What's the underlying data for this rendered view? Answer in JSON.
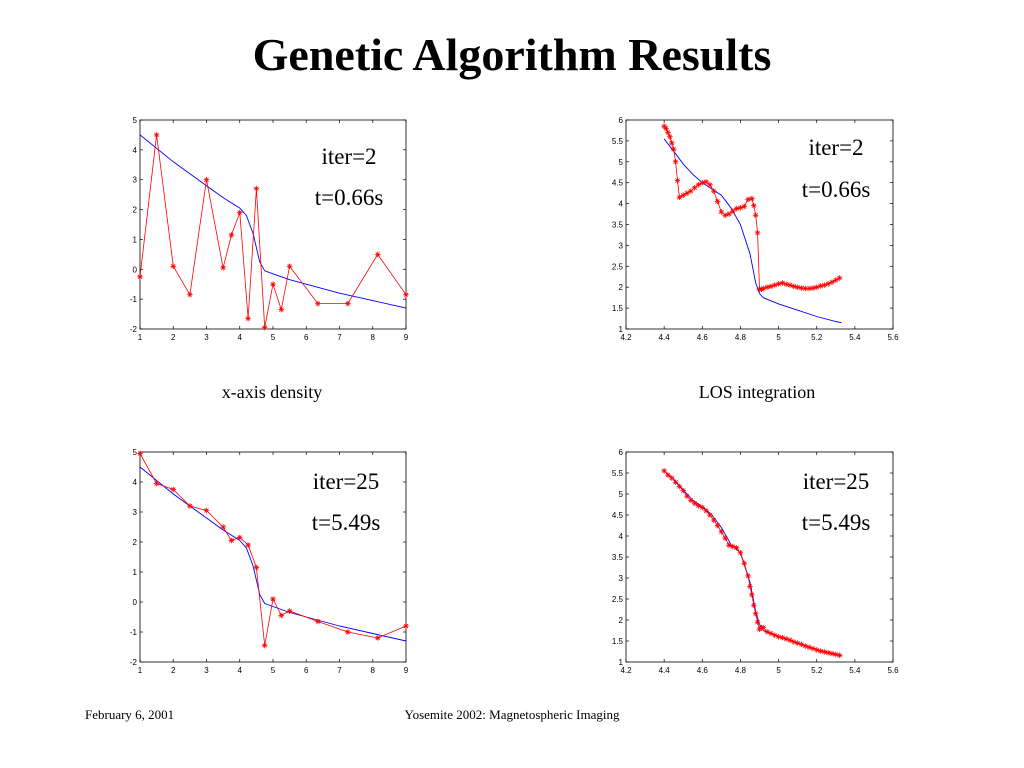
{
  "slide": {
    "title": "Genetic Algorithm Results",
    "footer_left": "February 6, 2001",
    "footer_center": "Yosemite 2002: Magnetospheric Imaging",
    "captions": [
      "x-axis  density",
      "LOS integration"
    ]
  },
  "colors": {
    "true_curve": "#0000ff",
    "estimate": "#ff0000"
  },
  "chart_data": [
    {
      "type": "line",
      "annotations": [
        "iter=2",
        "t=0.66s"
      ],
      "xlim": [
        1,
        9
      ],
      "ylim": [
        -2,
        5
      ],
      "xticks": [
        1,
        2,
        3,
        4,
        5,
        6,
        7,
        8,
        9
      ],
      "yticks": [
        -2,
        -1,
        0,
        1,
        2,
        3,
        4,
        5
      ],
      "series": [
        {
          "style": "line",
          "color": "#0000ff",
          "x": [
            1,
            2,
            3,
            3.5,
            4,
            4.2,
            4.4,
            4.6,
            4.75,
            5,
            5.5,
            6,
            7,
            8,
            9
          ],
          "y": [
            4.5,
            3.6,
            2.8,
            2.4,
            2.05,
            1.8,
            1.2,
            0.25,
            -0.05,
            -0.15,
            -0.35,
            -0.5,
            -0.8,
            -1.05,
            -1.3
          ]
        },
        {
          "style": "line-markers",
          "color": "#ff0000",
          "x": [
            1,
            1.5,
            2,
            2.5,
            3,
            3.5,
            3.75,
            4,
            4.25,
            4.5,
            4.75,
            5,
            5.25,
            5.5,
            6.35,
            7.25,
            8.15,
            9
          ],
          "y": [
            -0.25,
            4.5,
            0.1,
            -0.85,
            3.0,
            0.05,
            1.15,
            1.9,
            -1.65,
            2.7,
            -1.95,
            -0.5,
            -1.35,
            0.1,
            -1.15,
            -1.15,
            0.5,
            -0.85
          ]
        }
      ]
    },
    {
      "type": "line",
      "annotations": [
        "iter=2",
        "t=0.66s"
      ],
      "xlim": [
        4.2,
        5.6
      ],
      "ylim": [
        1,
        6
      ],
      "xticks": [
        4.2,
        4.4,
        4.6,
        4.8,
        5,
        5.2,
        5.4,
        5.6
      ],
      "yticks": [
        1,
        1.5,
        2,
        2.5,
        3,
        3.5,
        4,
        4.5,
        5,
        5.5,
        6
      ],
      "series": [
        {
          "style": "line",
          "color": "#0000ff",
          "x": [
            4.4,
            4.45,
            4.5,
            4.55,
            4.6,
            4.65,
            4.7,
            4.75,
            4.8,
            4.85,
            4.88,
            4.9,
            4.92,
            5.0,
            5.1,
            5.2,
            5.3,
            5.33
          ],
          "y": [
            5.55,
            5.25,
            4.95,
            4.7,
            4.5,
            4.35,
            4.2,
            3.9,
            3.5,
            2.8,
            2.1,
            1.85,
            1.75,
            1.6,
            1.45,
            1.3,
            1.18,
            1.15
          ]
        },
        {
          "style": "line-markers",
          "color": "#ff0000",
          "x": [
            4.4,
            4.41,
            4.42,
            4.43,
            4.44,
            4.45,
            4.46,
            4.47,
            4.48,
            4.5,
            4.52,
            4.54,
            4.56,
            4.58,
            4.6,
            4.62,
            4.64,
            4.66,
            4.68,
            4.7,
            4.72,
            4.74,
            4.76,
            4.78,
            4.8,
            4.82,
            4.84,
            4.86,
            4.87,
            4.88,
            4.89,
            4.9,
            4.91,
            4.92,
            4.94,
            4.96,
            4.98,
            5.0,
            5.02,
            5.04,
            5.06,
            5.08,
            5.1,
            5.12,
            5.14,
            5.16,
            5.18,
            5.2,
            5.22,
            5.24,
            5.26,
            5.28,
            5.3,
            5.32
          ],
          "y": [
            5.85,
            5.8,
            5.7,
            5.6,
            5.45,
            5.3,
            5.0,
            4.55,
            4.15,
            4.2,
            4.25,
            4.3,
            4.38,
            4.45,
            4.5,
            4.52,
            4.45,
            4.3,
            4.05,
            3.8,
            3.72,
            3.75,
            3.82,
            3.88,
            3.9,
            3.93,
            4.1,
            4.12,
            3.95,
            3.72,
            3.3,
            1.95,
            1.95,
            1.97,
            2.0,
            2.02,
            2.05,
            2.08,
            2.1,
            2.07,
            2.05,
            2.02,
            2.0,
            1.98,
            1.97,
            1.97,
            1.98,
            2.0,
            2.03,
            2.05,
            2.08,
            2.12,
            2.17,
            2.22
          ]
        }
      ]
    },
    {
      "type": "line",
      "annotations": [
        "iter=25",
        "t=5.49s"
      ],
      "xlim": [
        1,
        9
      ],
      "ylim": [
        -2,
        5
      ],
      "xticks": [
        1,
        2,
        3,
        4,
        5,
        6,
        7,
        8,
        9
      ],
      "yticks": [
        -2,
        -1,
        0,
        1,
        2,
        3,
        4,
        5
      ],
      "series": [
        {
          "style": "line",
          "color": "#0000ff",
          "x": [
            1,
            2,
            3,
            3.5,
            4,
            4.2,
            4.4,
            4.6,
            4.75,
            5,
            5.5,
            6,
            7,
            8,
            9
          ],
          "y": [
            4.5,
            3.6,
            2.8,
            2.4,
            2.05,
            1.8,
            1.2,
            0.25,
            -0.05,
            -0.15,
            -0.35,
            -0.5,
            -0.8,
            -1.05,
            -1.3
          ]
        },
        {
          "style": "line-markers",
          "color": "#ff0000",
          "x": [
            1,
            1.5,
            2,
            2.5,
            3,
            3.5,
            3.75,
            4,
            4.25,
            4.5,
            4.75,
            5,
            5.25,
            5.5,
            6.35,
            7.25,
            8.15,
            9
          ],
          "y": [
            4.95,
            3.95,
            3.75,
            3.2,
            3.05,
            2.5,
            2.05,
            2.15,
            1.9,
            1.15,
            -1.45,
            0.1,
            -0.45,
            -0.3,
            -0.65,
            -1.0,
            -1.2,
            -0.8
          ]
        }
      ]
    },
    {
      "type": "line",
      "annotations": [
        "iter=25",
        "t=5.49s"
      ],
      "xlim": [
        4.2,
        5.6
      ],
      "ylim": [
        1,
        6
      ],
      "xticks": [
        4.2,
        4.4,
        4.6,
        4.8,
        5,
        5.2,
        5.4,
        5.6
      ],
      "yticks": [
        1,
        1.5,
        2,
        2.5,
        3,
        3.5,
        4,
        4.5,
        5,
        5.5,
        6
      ],
      "series": [
        {
          "style": "line",
          "color": "#0000ff",
          "x": [
            4.4,
            4.45,
            4.5,
            4.55,
            4.6,
            4.65,
            4.7,
            4.75,
            4.8,
            4.85,
            4.88,
            4.9,
            4.92,
            5.0,
            5.1,
            5.2,
            5.3,
            5.33
          ],
          "y": [
            5.55,
            5.35,
            5.1,
            4.85,
            4.7,
            4.5,
            4.2,
            3.8,
            3.6,
            2.9,
            2.2,
            1.9,
            1.75,
            1.6,
            1.45,
            1.3,
            1.18,
            1.15
          ]
        },
        {
          "style": "line-markers",
          "color": "#ff0000",
          "x": [
            4.4,
            4.42,
            4.44,
            4.46,
            4.48,
            4.5,
            4.52,
            4.54,
            4.56,
            4.58,
            4.6,
            4.62,
            4.64,
            4.66,
            4.68,
            4.7,
            4.72,
            4.74,
            4.76,
            4.78,
            4.8,
            4.82,
            4.84,
            4.85,
            4.86,
            4.87,
            4.88,
            4.89,
            4.9,
            4.91,
            4.92,
            4.94,
            4.96,
            4.98,
            5.0,
            5.02,
            5.04,
            5.06,
            5.08,
            5.1,
            5.12,
            5.14,
            5.16,
            5.18,
            5.2,
            5.22,
            5.24,
            5.26,
            5.28,
            5.3,
            5.32
          ],
          "y": [
            5.55,
            5.45,
            5.38,
            5.28,
            5.18,
            5.08,
            4.95,
            4.85,
            4.78,
            4.72,
            4.68,
            4.6,
            4.5,
            4.38,
            4.25,
            4.1,
            3.95,
            3.78,
            3.75,
            3.72,
            3.6,
            3.35,
            3.05,
            2.8,
            2.6,
            2.35,
            2.15,
            1.95,
            1.78,
            1.82,
            1.82,
            1.72,
            1.68,
            1.64,
            1.6,
            1.58,
            1.55,
            1.52,
            1.48,
            1.45,
            1.42,
            1.38,
            1.35,
            1.32,
            1.29,
            1.26,
            1.24,
            1.22,
            1.2,
            1.18,
            1.16
          ]
        }
      ]
    }
  ]
}
